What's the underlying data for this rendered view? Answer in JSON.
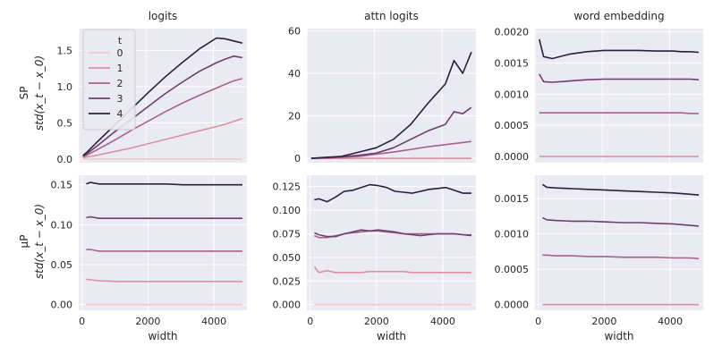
{
  "figure": {
    "row_labels": [
      {
        "line1": "SP",
        "line2": "std(x_t − x_0)"
      },
      {
        "line1": "μP",
        "line2": "std(x_t − x_0)"
      }
    ],
    "legend": {
      "title": "t",
      "entries": [
        "0",
        "1",
        "2",
        "3",
        "4"
      ]
    }
  },
  "colors": {
    "t0": "#f0c9c4",
    "t1": "#d991a4",
    "t2": "#a6628d",
    "t3": "#6c3e70",
    "t4": "#2d1e3e",
    "panel_bg": "#eaeaf2"
  },
  "chart_data": [
    {
      "type": "line",
      "title": "logits",
      "xlabel": "",
      "ylabel": "SP std(x_t − x_0)",
      "xlim": [
        0,
        5000
      ],
      "ylim": [
        -0.05,
        1.8
      ],
      "xticks": [],
      "yticks": [
        0,
        0.5,
        1.0,
        1.5
      ],
      "ytick_labels": [
        "0.0",
        "0.5",
        "1.0",
        "1.5"
      ],
      "legend": "upper-left",
      "x": [
        128,
        256,
        512,
        1024,
        1536,
        2048,
        2560,
        3072,
        3584,
        4096,
        4352,
        4608,
        4864
      ],
      "series": [
        {
          "name": "0",
          "values": [
            0,
            0,
            0,
            0,
            0,
            0,
            0,
            0,
            0,
            0,
            0,
            0,
            0
          ]
        },
        {
          "name": "1",
          "values": [
            0.02,
            0.03,
            0.05,
            0.1,
            0.15,
            0.21,
            0.27,
            0.33,
            0.39,
            0.45,
            0.48,
            0.52,
            0.56
          ]
        },
        {
          "name": "2",
          "values": [
            0.03,
            0.06,
            0.12,
            0.25,
            0.39,
            0.52,
            0.65,
            0.77,
            0.88,
            0.98,
            1.03,
            1.08,
            1.11
          ]
        },
        {
          "name": "3",
          "values": [
            0.04,
            0.08,
            0.17,
            0.36,
            0.54,
            0.72,
            0.9,
            1.06,
            1.21,
            1.33,
            1.38,
            1.42,
            1.4
          ]
        },
        {
          "name": "4",
          "values": [
            0.05,
            0.1,
            0.22,
            0.45,
            0.68,
            0.91,
            1.13,
            1.33,
            1.52,
            1.67,
            1.66,
            1.63,
            1.6
          ]
        }
      ]
    },
    {
      "type": "line",
      "title": "attn logits",
      "xlabel": "",
      "ylabel": "",
      "xlim": [
        0,
        5000
      ],
      "ylim": [
        -2,
        61
      ],
      "xticks": [],
      "yticks": [
        0,
        20,
        40,
        60
      ],
      "ytick_labels": [
        "0",
        "20",
        "40",
        "60"
      ],
      "x": [
        128,
        256,
        512,
        1024,
        1536,
        2048,
        2560,
        3072,
        3584,
        4096,
        4352,
        4608,
        4864
      ],
      "series": [
        {
          "name": "0",
          "values": [
            0,
            0,
            0,
            0,
            0,
            0,
            0,
            0,
            0,
            0,
            0,
            0,
            0
          ]
        },
        {
          "name": "1",
          "values": [
            0,
            0,
            0,
            0,
            0,
            0,
            0,
            0,
            0,
            0,
            0,
            0,
            0
          ]
        },
        {
          "name": "2",
          "values": [
            0,
            0.1,
            0.2,
            0.5,
            1.0,
            2.0,
            3.0,
            4.2,
            5.5,
            6.5,
            7.0,
            7.5,
            8.0
          ]
        },
        {
          "name": "3",
          "values": [
            0,
            0.2,
            0.3,
            0.8,
            1.5,
            2.5,
            5.0,
            9.0,
            13.0,
            16.0,
            22.0,
            21.0,
            24.0
          ]
        },
        {
          "name": "4",
          "values": [
            0,
            0.2,
            0.5,
            1.0,
            3.0,
            5.0,
            9.0,
            16.0,
            26.0,
            35.0,
            46.0,
            40.0,
            50.0
          ]
        }
      ]
    },
    {
      "type": "line",
      "title": "word embedding",
      "xlabel": "",
      "ylabel": "",
      "xlim": [
        0,
        5000
      ],
      "ylim": [
        -0.0001,
        0.00205
      ],
      "xticks": [],
      "yticks": [
        0,
        0.0005,
        0.001,
        0.0015,
        0.002
      ],
      "ytick_labels": [
        "0.0000",
        "0.0005",
        "0.0010",
        "0.0015",
        "0.0020"
      ],
      "x": [
        128,
        256,
        512,
        1024,
        1536,
        2048,
        2560,
        3072,
        3584,
        4096,
        4352,
        4608,
        4864
      ],
      "series": [
        {
          "name": "0",
          "values": [
            0,
            0,
            0,
            0,
            0,
            0,
            0,
            0,
            0,
            0,
            0,
            0,
            0
          ]
        },
        {
          "name": "1",
          "values": [
            0,
            0,
            0,
            0,
            0,
            0,
            0,
            0,
            0,
            0,
            0,
            0,
            0
          ]
        },
        {
          "name": "2",
          "values": [
            0.0007,
            0.0007,
            0.0007,
            0.0007,
            0.0007,
            0.0007,
            0.0007,
            0.0007,
            0.0007,
            0.0007,
            0.0007,
            0.00069,
            0.00069
          ]
        },
        {
          "name": "3",
          "values": [
            0.00132,
            0.0012,
            0.00119,
            0.00121,
            0.00123,
            0.00124,
            0.00124,
            0.00124,
            0.00124,
            0.00124,
            0.00124,
            0.00124,
            0.00123
          ]
        },
        {
          "name": "4",
          "values": [
            0.00188,
            0.0016,
            0.00157,
            0.00164,
            0.00168,
            0.0017,
            0.0017,
            0.0017,
            0.00169,
            0.00169,
            0.00168,
            0.00168,
            0.00167
          ]
        }
      ]
    },
    {
      "type": "line",
      "title": "",
      "xlabel": "width",
      "ylabel": "μP std(x_t − x_0)",
      "xlim": [
        -100,
        5000
      ],
      "ylim": [
        -0.007,
        0.162
      ],
      "xticks": [
        0,
        2000,
        4000
      ],
      "xtick_labels": [
        "0",
        "2000",
        "4000"
      ],
      "yticks": [
        0,
        0.05,
        0.1,
        0.15
      ],
      "ytick_labels": [
        "0.00",
        "0.05",
        "0.10",
        "0.15"
      ],
      "x": [
        128,
        256,
        512,
        1024,
        1536,
        2048,
        2560,
        3072,
        3584,
        4096,
        4352,
        4608,
        4864
      ],
      "series": [
        {
          "name": "0",
          "values": [
            0,
            0,
            0,
            0,
            0,
            0,
            0,
            0,
            0,
            0,
            0,
            0,
            0
          ]
        },
        {
          "name": "1",
          "values": [
            0.032,
            0.031,
            0.03,
            0.029,
            0.029,
            0.029,
            0.029,
            0.029,
            0.029,
            0.029,
            0.029,
            0.029,
            0.029
          ]
        },
        {
          "name": "2",
          "values": [
            0.069,
            0.069,
            0.067,
            0.067,
            0.067,
            0.067,
            0.067,
            0.067,
            0.067,
            0.067,
            0.067,
            0.067,
            0.067
          ]
        },
        {
          "name": "3",
          "values": [
            0.109,
            0.11,
            0.108,
            0.108,
            0.108,
            0.108,
            0.108,
            0.108,
            0.108,
            0.108,
            0.108,
            0.108,
            0.108
          ]
        },
        {
          "name": "4",
          "values": [
            0.151,
            0.153,
            0.151,
            0.151,
            0.151,
            0.151,
            0.151,
            0.15,
            0.15,
            0.15,
            0.15,
            0.15,
            0.15
          ]
        }
      ]
    },
    {
      "type": "line",
      "title": "",
      "xlabel": "width",
      "ylabel": "",
      "xlim": [
        -100,
        5000
      ],
      "ylim": [
        -0.006,
        0.137
      ],
      "xticks": [
        0,
        2000,
        4000
      ],
      "xtick_labels": [
        "0",
        "2000",
        "4000"
      ],
      "yticks": [
        0,
        0.025,
        0.05,
        0.075,
        0.1,
        0.125
      ],
      "ytick_labels": [
        "0.000",
        "0.025",
        "0.050",
        "0.075",
        "0.100",
        "0.125"
      ],
      "x": [
        128,
        256,
        512,
        768,
        1024,
        1280,
        1536,
        1792,
        2048,
        2304,
        2560,
        2816,
        3072,
        3328,
        3584,
        3840,
        4096,
        4352,
        4608,
        4864
      ],
      "series": [
        {
          "name": "0",
          "values": [
            0,
            0,
            0,
            0,
            0,
            0,
            0,
            0,
            0,
            0,
            0,
            0,
            0,
            0,
            0,
            0,
            0,
            0,
            0,
            0
          ]
        },
        {
          "name": "1",
          "values": [
            0.04,
            0.034,
            0.036,
            0.034,
            0.034,
            0.034,
            0.034,
            0.035,
            0.035,
            0.035,
            0.035,
            0.035,
            0.034,
            0.034,
            0.034,
            0.034,
            0.034,
            0.034,
            0.034,
            0.034
          ]
        },
        {
          "name": "2",
          "values": [
            0.073,
            0.071,
            0.071,
            0.073,
            0.075,
            0.076,
            0.077,
            0.078,
            0.078,
            0.077,
            0.076,
            0.075,
            0.075,
            0.075,
            0.075,
            0.075,
            0.075,
            0.075,
            0.074,
            0.074
          ]
        },
        {
          "name": "3",
          "values": [
            0.076,
            0.074,
            0.072,
            0.072,
            0.075,
            0.077,
            0.079,
            0.078,
            0.079,
            0.078,
            0.077,
            0.075,
            0.074,
            0.073,
            0.074,
            0.075,
            0.075,
            0.075,
            0.074,
            0.073
          ]
        },
        {
          "name": "4",
          "values": [
            0.111,
            0.112,
            0.109,
            0.114,
            0.12,
            0.121,
            0.124,
            0.127,
            0.126,
            0.124,
            0.12,
            0.119,
            0.118,
            0.12,
            0.122,
            0.123,
            0.124,
            0.121,
            0.118,
            0.118
          ]
        }
      ]
    },
    {
      "type": "line",
      "title": "",
      "xlabel": "width",
      "ylabel": "",
      "xlim": [
        -100,
        5000
      ],
      "ylim": [
        -8e-05,
        0.00183
      ],
      "xticks": [
        0,
        2000,
        4000
      ],
      "xtick_labels": [
        "0",
        "2000",
        "4000"
      ],
      "yticks": [
        0,
        0.0005,
        0.001,
        0.0015
      ],
      "ytick_labels": [
        "0.0000",
        "0.0005",
        "0.0010",
        "0.0015"
      ],
      "x": [
        128,
        256,
        512,
        1024,
        1536,
        2048,
        2560,
        3072,
        3584,
        4096,
        4352,
        4608,
        4864
      ],
      "series": [
        {
          "name": "0",
          "values": [
            0,
            0,
            0,
            0,
            0,
            0,
            0,
            0,
            0,
            0,
            0,
            0,
            0
          ]
        },
        {
          "name": "1",
          "values": [
            0,
            0,
            0,
            0,
            0,
            0,
            0,
            0,
            0,
            0,
            0,
            0,
            0
          ]
        },
        {
          "name": "2",
          "values": [
            0.0007,
            0.0007,
            0.00069,
            0.00069,
            0.00068,
            0.00068,
            0.00067,
            0.00067,
            0.00067,
            0.00066,
            0.00066,
            0.00066,
            0.00065
          ]
        },
        {
          "name": "3",
          "values": [
            0.00123,
            0.0012,
            0.00119,
            0.00118,
            0.00118,
            0.00117,
            0.00116,
            0.00116,
            0.00115,
            0.00114,
            0.00113,
            0.00112,
            0.00111
          ]
        },
        {
          "name": "4",
          "values": [
            0.0017,
            0.00166,
            0.00165,
            0.00164,
            0.00163,
            0.00162,
            0.00161,
            0.0016,
            0.00159,
            0.00158,
            0.00157,
            0.00156,
            0.00155
          ]
        }
      ]
    }
  ]
}
